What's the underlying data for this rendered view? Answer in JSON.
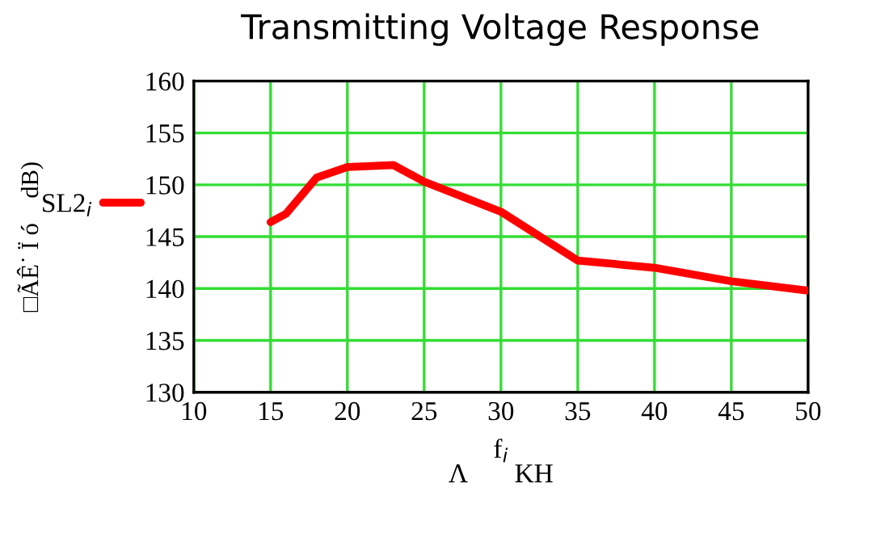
{
  "chart_data": {
    "type": "line",
    "title": "Transmitting Voltage Response",
    "ylabel": "□ÃÊ˙ Ï ó    dB)",
    "xlabel": "f$_{i}$\nΛ       KH",
    "x": [
      15,
      16,
      18,
      20,
      23,
      25,
      30,
      35,
      40,
      45,
      50
    ],
    "series": [
      {
        "name": "SL2$_{i}$",
        "color": "#ff0000",
        "values": [
          146.4,
          147.2,
          150.7,
          151.7,
          151.9,
          150.3,
          147.4,
          142.7,
          142.0,
          140.7,
          139.8
        ]
      }
    ],
    "xlim": [
      10,
      50
    ],
    "xticks": [
      10,
      15,
      20,
      25,
      30,
      35,
      40,
      45,
      50
    ],
    "ylim": [
      130,
      160
    ],
    "yticks": [
      130,
      135,
      140,
      145,
      150,
      155,
      160
    ],
    "grid": true,
    "legend": "left",
    "marker": "none",
    "line_style": "solid"
  }
}
